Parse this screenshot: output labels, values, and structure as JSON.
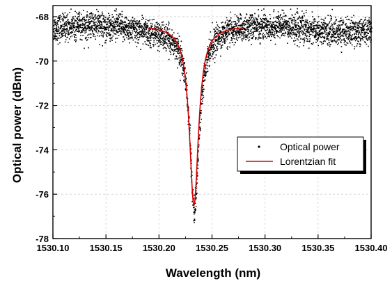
{
  "chart_data": {
    "type": "scatter",
    "title": "",
    "xlabel": "Wavelength (nm)",
    "ylabel": "Optical power (dBm)",
    "xlim": [
      1530.1,
      1530.4
    ],
    "ylim": [
      -78,
      -67.5
    ],
    "x_ticks": [
      "1530.10",
      "1530.15",
      "1530.20",
      "1530.25",
      "1530.30",
      "1530.35",
      "1530.40"
    ],
    "y_ticks": [
      "-68",
      "-70",
      "-72",
      "-74",
      "-76",
      "-78"
    ],
    "grid": true,
    "legend_position": "right",
    "series": [
      {
        "name": "Optical power",
        "kind": "scatter",
        "color": "#000000",
        "description_of_distribution": "dense noisy measurement points",
        "baseline_dBm": -68.5,
        "noise_dBm": 0.3,
        "x_start": 1530.1,
        "x_end": 1530.4,
        "count": 3600
      },
      {
        "name": "Lorentzian fit",
        "kind": "line",
        "color": "#d40000",
        "x_start": 1530.19,
        "x_end": 1530.28,
        "center_nm": 1530.233,
        "minimum_dBm": -76.5,
        "offset_dBm": -68.4,
        "fwhm_nm": 0.0105
      }
    ]
  }
}
